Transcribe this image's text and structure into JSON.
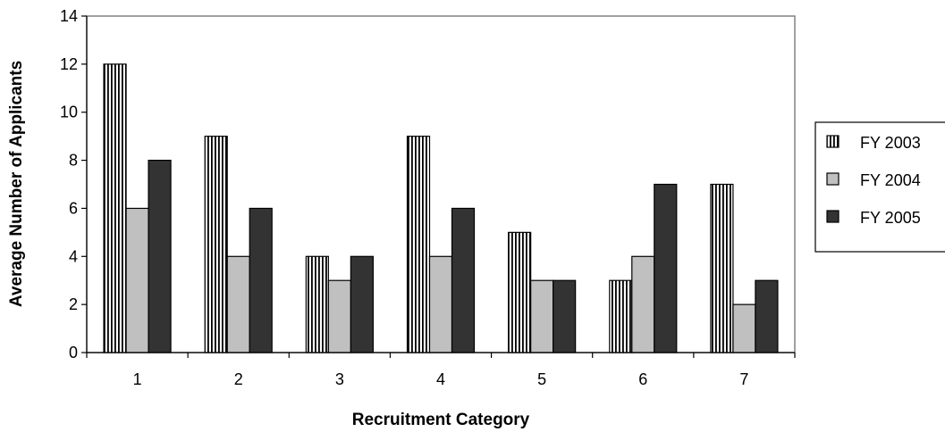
{
  "chart_data": {
    "type": "bar",
    "title": "",
    "xlabel": "Recruitment Category",
    "ylabel": "Average Number of Applicants",
    "categories": [
      "1",
      "2",
      "3",
      "4",
      "5",
      "6",
      "7"
    ],
    "ylim": [
      0,
      14
    ],
    "yticks": [
      0,
      2,
      4,
      6,
      8,
      10,
      12,
      14
    ],
    "grid": false,
    "legend_position": "right",
    "series": [
      {
        "name": "FY 2003",
        "values": [
          12,
          9,
          4,
          9,
          5,
          3,
          7
        ],
        "pattern": "vertical-stripes",
        "color": "#ffffff"
      },
      {
        "name": "FY 2004",
        "values": [
          6,
          4,
          3,
          4,
          3,
          4,
          2
        ],
        "pattern": "solid",
        "color": "#c0c0c0"
      },
      {
        "name": "FY 2005",
        "values": [
          8,
          6,
          4,
          6,
          3,
          7,
          3
        ],
        "pattern": "solid",
        "color": "#333333"
      }
    ]
  }
}
